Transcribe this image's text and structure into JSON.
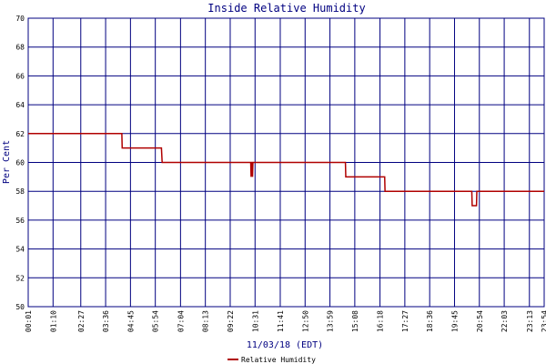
{
  "chart_data": {
    "type": "line",
    "title": "Inside Relative Humidity",
    "y_label": "Per Cent",
    "x_label": "11/03/18 (EDT)",
    "ylim": [
      50,
      70
    ],
    "yticks": [
      50,
      52,
      54,
      56,
      58,
      60,
      62,
      64,
      66,
      68,
      70
    ],
    "xlim": [
      "00:01",
      "23:54"
    ],
    "xticks": [
      "00:01",
      "01:10",
      "02:27",
      "03:36",
      "04:45",
      "05:54",
      "07:04",
      "08:13",
      "09:22",
      "10:31",
      "11:41",
      "12:50",
      "13:59",
      "15:08",
      "16:18",
      "17:27",
      "18:36",
      "19:45",
      "20:54",
      "22:03",
      "23:13",
      "23:54"
    ],
    "grid": true,
    "series": [
      {
        "name": "Relative Humidity",
        "color": "#b00000",
        "x": [
          "00:01",
          "04:21",
          "04:22",
          "06:11",
          "06:13",
          "10:19",
          "10:20",
          "10:21",
          "10:23",
          "10:24",
          "10:25",
          "14:42",
          "14:43",
          "16:31",
          "16:32",
          "20:33",
          "20:34",
          "20:46",
          "20:47",
          "23:54"
        ],
        "values": [
          62,
          62,
          61,
          61,
          60,
          60,
          59,
          60,
          60,
          59,
          60,
          60,
          59,
          59,
          58,
          58,
          57,
          57,
          58,
          58
        ]
      }
    ]
  }
}
